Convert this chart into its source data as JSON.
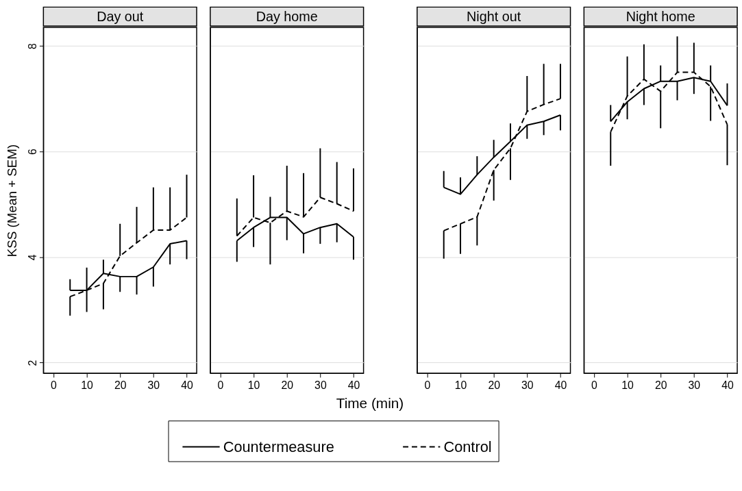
{
  "chart_data": [
    {
      "type": "line",
      "title": "Day out",
      "ylabel": "KSS (Mean + SEM)",
      "legend": "bottom",
      "grid": "y",
      "x": [
        5,
        10,
        15,
        20,
        25,
        30,
        35,
        40
      ],
      "xlim": [
        -3,
        43
      ],
      "xticks": [
        0,
        10,
        20,
        30,
        40
      ],
      "ylim": [
        1.8,
        8.35
      ],
      "yticks": [
        2,
        4,
        6,
        8
      ],
      "series": [
        {
          "name": "Countermeasure",
          "color": "#000000",
          "line_style": "solid",
          "values": [
            3.37,
            3.37,
            3.69,
            3.63,
            3.63,
            3.81,
            4.25,
            4.31
          ],
          "errors": [
            [
              3.37,
              3.58
            ],
            [
              3.37,
              3.8
            ],
            [
              3.69,
              3.95
            ],
            [
              3.34,
              3.63
            ],
            [
              3.29,
              3.63
            ],
            [
              3.44,
              3.81
            ],
            [
              3.86,
              4.25
            ],
            [
              3.96,
              4.31
            ]
          ]
        },
        {
          "name": "Control",
          "color": "#000000",
          "line_style": "dashed",
          "values": [
            3.25,
            3.37,
            3.5,
            4.02,
            4.27,
            4.51,
            4.51,
            4.75
          ],
          "errors": [
            [
              2.89,
              3.25
            ],
            [
              2.96,
              3.37
            ],
            [
              3.01,
              3.5
            ],
            [
              4.02,
              4.63
            ],
            [
              4.27,
              4.95
            ],
            [
              4.51,
              5.32
            ],
            [
              4.51,
              5.32
            ],
            [
              4.75,
              5.56
            ]
          ]
        }
      ]
    },
    {
      "type": "line",
      "title": "Day home",
      "xlabel": "Time (min)",
      "grid": "y",
      "tick_labels": "x",
      "x": [
        5,
        10,
        15,
        20,
        25,
        30,
        35,
        40
      ],
      "xlim": [
        -3,
        43
      ],
      "xticks": [
        0,
        10,
        20,
        30,
        40
      ],
      "ylim": [
        1.8,
        8.35
      ],
      "yticks": [
        2,
        4,
        6,
        8
      ],
      "series": [
        {
          "name": "Countermeasure",
          "color": "#000000",
          "line_style": "solid",
          "values": [
            4.31,
            4.56,
            4.75,
            4.75,
            4.44,
            4.56,
            4.63,
            4.38
          ],
          "errors": [
            [
              3.91,
              4.31
            ],
            [
              4.19,
              4.56
            ],
            [
              4.75,
              5.14
            ],
            [
              4.32,
              4.75
            ],
            [
              4.07,
              4.44
            ],
            [
              4.25,
              4.56
            ],
            [
              4.28,
              4.63
            ],
            [
              3.95,
              4.38
            ]
          ]
        },
        {
          "name": "Control",
          "color": "#000000",
          "line_style": "dashed",
          "values": [
            4.4,
            4.75,
            4.65,
            4.87,
            4.76,
            5.13,
            5.01,
            4.87
          ],
          "errors": [
            [
              4.4,
              5.11
            ],
            [
              4.75,
              5.55
            ],
            [
              3.86,
              4.65
            ],
            [
              4.87,
              5.73
            ],
            [
              4.76,
              5.59
            ],
            [
              5.13,
              6.06
            ],
            [
              5.01,
              5.8
            ],
            [
              4.87,
              5.68
            ]
          ]
        }
      ]
    },
    {
      "type": "line",
      "title": "Night out",
      "grid": "y",
      "tick_labels": "x",
      "x": [
        5,
        10,
        15,
        20,
        25,
        30,
        35,
        40
      ],
      "xlim": [
        -3,
        43
      ],
      "xticks": [
        0,
        10,
        20,
        30,
        40
      ],
      "ylim": [
        1.8,
        8.35
      ],
      "yticks": [
        2,
        4,
        6,
        8
      ],
      "series": [
        {
          "name": "Countermeasure",
          "color": "#000000",
          "line_style": "solid",
          "values": [
            5.32,
            5.19,
            5.56,
            5.89,
            6.19,
            6.5,
            6.57,
            6.69
          ],
          "errors": [
            [
              5.32,
              5.63
            ],
            [
              5.19,
              5.51
            ],
            [
              5.56,
              5.91
            ],
            [
              5.89,
              6.22
            ],
            [
              6.19,
              6.53
            ],
            [
              6.24,
              6.5
            ],
            [
              6.31,
              6.57
            ],
            [
              6.4,
              6.69
            ]
          ]
        },
        {
          "name": "Control",
          "color": "#000000",
          "line_style": "dashed",
          "values": [
            4.5,
            4.63,
            4.76,
            5.65,
            6.06,
            6.76,
            6.89,
            7.0
          ],
          "errors": [
            [
              3.97,
              4.5
            ],
            [
              4.06,
              4.63
            ],
            [
              4.22,
              4.76
            ],
            [
              5.07,
              5.65
            ],
            [
              5.46,
              6.06
            ],
            [
              6.76,
              7.43
            ],
            [
              6.89,
              7.66
            ],
            [
              7.0,
              7.66
            ]
          ]
        }
      ]
    },
    {
      "type": "line",
      "title": "Night home",
      "grid": "y",
      "tick_labels": "x",
      "x": [
        5,
        10,
        15,
        20,
        25,
        30,
        35,
        40
      ],
      "xlim": [
        -3,
        43
      ],
      "xticks": [
        0,
        10,
        20,
        30,
        40
      ],
      "ylim": [
        1.8,
        8.35
      ],
      "yticks": [
        2,
        4,
        6,
        8
      ],
      "series": [
        {
          "name": "Countermeasure",
          "color": "#000000",
          "line_style": "solid",
          "values": [
            6.57,
            6.94,
            7.19,
            7.33,
            7.33,
            7.4,
            7.33,
            6.87
          ],
          "errors": [
            [
              6.57,
              6.88
            ],
            [
              6.61,
              6.94
            ],
            [
              6.88,
              7.19
            ],
            [
              7.33,
              7.63
            ],
            [
              6.97,
              7.33
            ],
            [
              7.09,
              7.4
            ],
            [
              7.33,
              7.63
            ],
            [
              6.87,
              7.29
            ]
          ]
        },
        {
          "name": "Control",
          "color": "#000000",
          "line_style": "dashed",
          "values": [
            6.37,
            7.05,
            7.37,
            7.14,
            7.5,
            7.5,
            7.23,
            6.51
          ],
          "errors": [
            [
              5.73,
              6.37
            ],
            [
              7.05,
              7.8
            ],
            [
              7.37,
              8.03
            ],
            [
              6.44,
              7.14
            ],
            [
              7.5,
              8.18
            ],
            [
              7.5,
              8.06
            ],
            [
              6.58,
              7.23
            ],
            [
              5.74,
              6.51
            ]
          ]
        }
      ]
    }
  ]
}
